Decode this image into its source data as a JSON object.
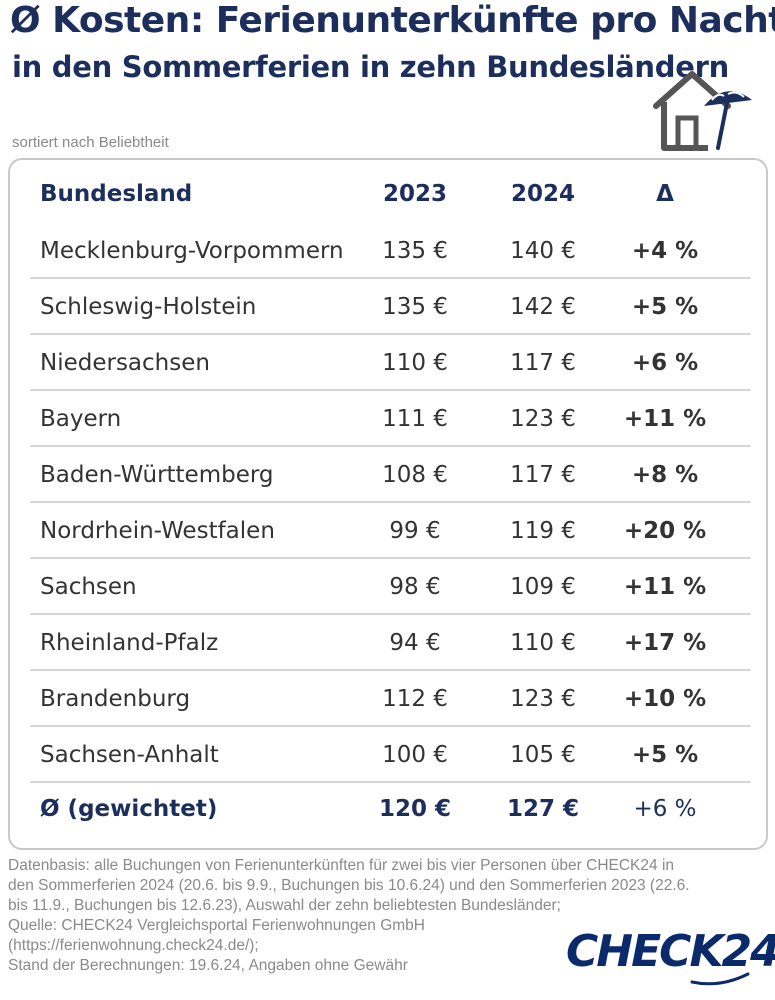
{
  "header": {
    "title": "Ø Kosten: Ferienunterkünfte pro Nacht",
    "subtitle": "in den Sommerferien in zehn Bundesländern",
    "icon": "house-umbrella-icon",
    "sort_note": "sortiert nach Beliebtheit"
  },
  "table": {
    "columns": [
      "Bundesland",
      "2023",
      "2024",
      "Δ"
    ],
    "rows": [
      {
        "land": "Mecklenburg-Vorpommern",
        "y2023": "135 €",
        "y2024": "140 €",
        "delta": "+4 %"
      },
      {
        "land": "Schleswig-Holstein",
        "y2023": "135 €",
        "y2024": "142 €",
        "delta": "+5 %"
      },
      {
        "land": "Niedersachsen",
        "y2023": "110 €",
        "y2024": "117 €",
        "delta": "+6 %"
      },
      {
        "land": "Bayern",
        "y2023": "111 €",
        "y2024": "123 €",
        "delta": "+11 %"
      },
      {
        "land": "Baden-Württemberg",
        "y2023": "108 €",
        "y2024": "117 €",
        "delta": "+8 %"
      },
      {
        "land": "Nordrhein-Westfalen",
        "y2023": "99 €",
        "y2024": "119 €",
        "delta": "+20 %"
      },
      {
        "land": "Sachsen",
        "y2023": "98 €",
        "y2024": "109 €",
        "delta": "+11 %"
      },
      {
        "land": "Rheinland-Pfalz",
        "y2023": "94 €",
        "y2024": "110 €",
        "delta": "+17 %"
      },
      {
        "land": "Brandenburg",
        "y2023": "112 €",
        "y2024": "123 €",
        "delta": "+10 %"
      },
      {
        "land": "Sachsen-Anhalt",
        "y2023": "100 €",
        "y2024": "105 €",
        "delta": "+5 %"
      }
    ],
    "average": {
      "land": "Ø (gewichtet)",
      "y2023": "120 €",
      "y2024": "127 €",
      "delta": "+6 %"
    }
  },
  "footer": {
    "lines": [
      "Datenbasis: alle Buchungen von Ferienunterkünften für zwei bis vier Personen über CHECK24 in",
      "den Sommerferien 2024 (20.6. bis 9.9., Buchungen bis 10.6.24) und den Sommerferien 2023 (22.6.",
      "bis 11.9., Buchungen bis 12.6.23), Auswahl der zehn beliebtesten Bundesländer;",
      "Quelle: CHECK24 Vergleichsportal Ferienwohnungen GmbH",
      "(https://ferienwohnung.check24.de/);",
      "Stand der Berechnungen: 19.6.24, Angaben ohne Gewähr"
    ],
    "logo": "CHECK24"
  },
  "colors": {
    "brand": "#1c2e5c",
    "text": "#333333",
    "muted": "#8a8a8a",
    "divider": "#d6d6d6"
  }
}
